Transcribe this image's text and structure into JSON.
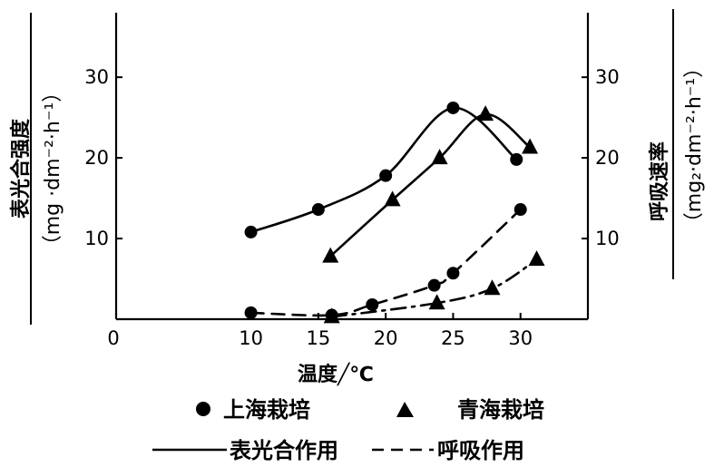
{
  "chart_data": {
    "type": "line",
    "x_axis": {
      "label": "温度╱℃",
      "range": [
        0,
        35
      ],
      "ticks": [
        "0",
        "10",
        "15",
        "20",
        "25",
        "30"
      ]
    },
    "y_axis_left": {
      "label_main": "表光合强度",
      "label_unit": "（mg ·dm⁻²·h⁻¹）",
      "range": [
        0,
        38
      ],
      "ticks": [
        "10",
        "20",
        "30"
      ]
    },
    "y_axis_right": {
      "label_main": "呼吸速率",
      "label_unit": "（mg₂·dm⁻²·h⁻¹）",
      "range": [
        0,
        38
      ],
      "ticks": [
        "10",
        "20",
        "30"
      ]
    },
    "series": [
      {
        "name": "上海栽培 表光合作用",
        "marker": "circle",
        "line": "solid",
        "points": [
          [
            10,
            10.8
          ],
          [
            15,
            13.6
          ],
          [
            20,
            17.8
          ],
          [
            25,
            26.2
          ],
          [
            29.7,
            19.8
          ]
        ]
      },
      {
        "name": "青海栽培 表光合作用",
        "marker": "triangle",
        "line": "solid",
        "points": [
          [
            15.9,
            7.8
          ],
          [
            20.5,
            14.8
          ],
          [
            24,
            20.0
          ],
          [
            27.4,
            25.4
          ],
          [
            30.7,
            21.3
          ]
        ]
      },
      {
        "name": "上海栽培 呼吸作用",
        "marker": "circle",
        "line": "dashed",
        "points": [
          [
            10,
            0.8
          ],
          [
            16,
            0.5
          ],
          [
            19,
            1.8
          ],
          [
            23.6,
            4.2
          ],
          [
            25,
            5.7
          ],
          [
            30,
            13.6
          ]
        ]
      },
      {
        "name": "青海栽培 呼吸作用",
        "marker": "triangle",
        "line": "dashdot",
        "points": [
          [
            16,
            0.3
          ],
          [
            23.8,
            2.0
          ],
          [
            27.9,
            3.8
          ],
          [
            31.2,
            7.4
          ]
        ]
      }
    ],
    "legend": {
      "marker_items": [
        {
          "marker": "circle",
          "label": "上海栽培"
        },
        {
          "marker": "triangle",
          "label": "青海栽培"
        }
      ],
      "line_items": [
        {
          "style": "solid",
          "label": "表光合作用"
        },
        {
          "style": "dashed",
          "label": "呼吸作用"
        }
      ]
    }
  }
}
